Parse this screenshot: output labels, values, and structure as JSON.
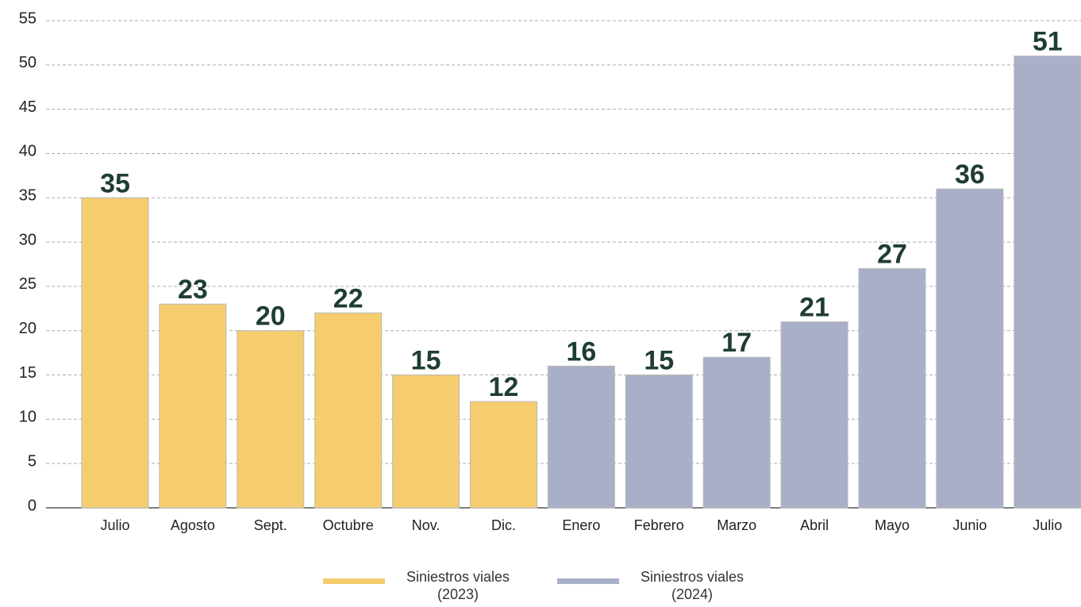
{
  "chart_data": {
    "type": "bar",
    "categories": [
      "Julio",
      "Agosto",
      "Sept.",
      "Octubre",
      "Nov.",
      "Dic.",
      "Enero",
      "Febrero",
      "Marzo",
      "Abril",
      "Mayo",
      "Junio",
      "Julio"
    ],
    "series": [
      {
        "name": "Siniestros viales (2023)",
        "color": "#f5cd6e",
        "values": [
          35,
          23,
          20,
          22,
          15,
          12,
          null,
          null,
          null,
          null,
          null,
          null,
          null
        ]
      },
      {
        "name": "Siniestros viales (2024)",
        "color": "#a9afc8",
        "values": [
          null,
          null,
          null,
          null,
          null,
          null,
          16,
          15,
          17,
          21,
          27,
          36,
          51
        ]
      }
    ],
    "ylim": [
      0,
      55
    ],
    "yticks": [
      0,
      5,
      10,
      15,
      20,
      25,
      30,
      35,
      40,
      45,
      50,
      55
    ],
    "grid": true,
    "legend": "bottom"
  }
}
